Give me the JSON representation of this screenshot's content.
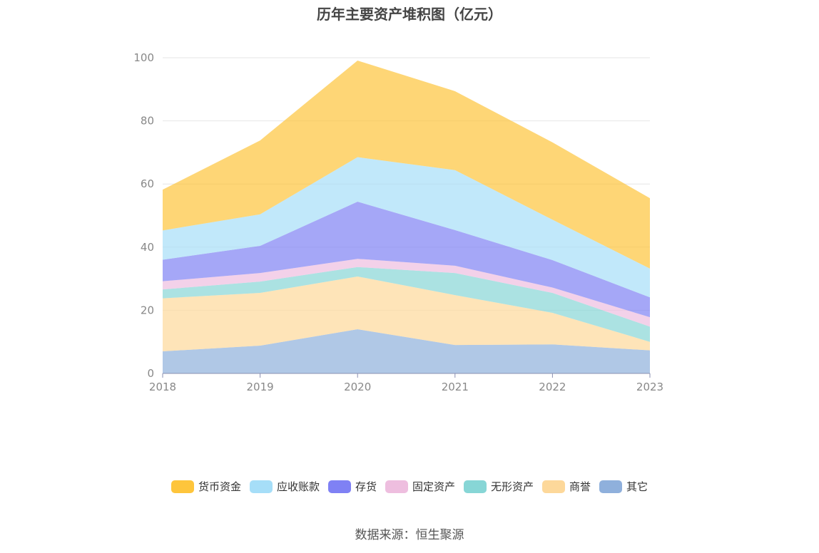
{
  "title": "历年主要资产堆积图（亿元）",
  "source": "数据来源：恒生聚源",
  "chart_data": {
    "type": "area",
    "stacked": true,
    "x": [
      "2018",
      "2019",
      "2020",
      "2021",
      "2022",
      "2023"
    ],
    "ylim": [
      0,
      100
    ],
    "yticks": [
      0,
      20,
      40,
      60,
      80,
      100
    ],
    "grid": true,
    "legend_position": "bottom",
    "series": [
      {
        "name": "其它",
        "color": "#8fb0dc",
        "values": [
          7.0,
          8.8,
          14.0,
          9.0,
          9.2,
          7.3
        ]
      },
      {
        "name": "商誉",
        "color": "#fdd89a",
        "values": [
          16.8,
          16.7,
          16.7,
          15.8,
          10.0,
          2.7
        ]
      },
      {
        "name": "无形资产",
        "color": "#87d6d6",
        "values": [
          2.8,
          3.6,
          3.0,
          7.0,
          6.3,
          4.8
        ]
      },
      {
        "name": "固定资产",
        "color": "#eebedf",
        "values": [
          2.6,
          2.7,
          2.6,
          2.3,
          1.7,
          3.0
        ]
      },
      {
        "name": "存货",
        "color": "#7f81f4",
        "values": [
          6.8,
          8.6,
          18.1,
          11.3,
          8.7,
          6.3
        ]
      },
      {
        "name": "应收账款",
        "color": "#a6def8",
        "values": [
          9.3,
          10.0,
          14.1,
          19.0,
          12.8,
          9.1
        ]
      },
      {
        "name": "货币资金",
        "color": "#fec53c",
        "values": [
          12.9,
          23.4,
          30.6,
          25.0,
          24.5,
          22.3
        ]
      }
    ],
    "legend_order": [
      "货币资金",
      "应收账款",
      "存货",
      "固定资产",
      "无形资产",
      "商誉",
      "其它"
    ]
  }
}
